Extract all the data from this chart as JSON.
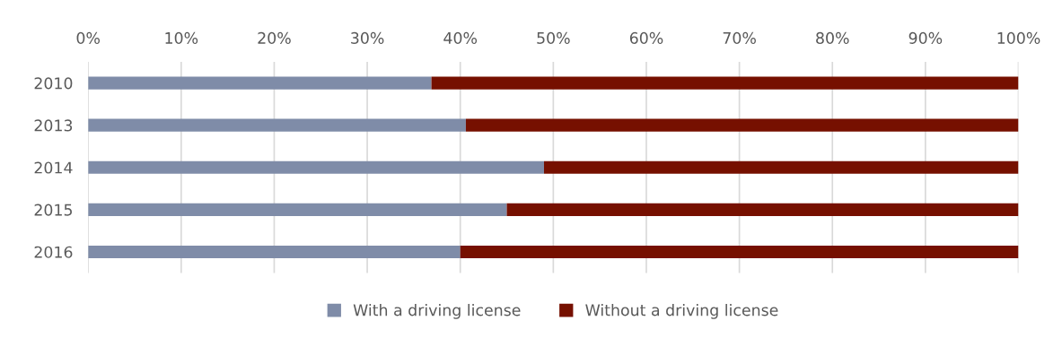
{
  "chart_data": {
    "type": "bar",
    "orientation": "horizontal",
    "stacked": true,
    "categories": [
      "2010",
      "2013",
      "2014",
      "2015",
      "2016"
    ],
    "series": [
      {
        "name": "With a driving license",
        "color": "#7f8ca8",
        "values": [
          36.9,
          40.6,
          49.0,
          45.0,
          40.0
        ]
      },
      {
        "name": "Without a driving license",
        "color": "#761000",
        "values": [
          63.1,
          59.4,
          51.0,
          55.0,
          60.0
        ]
      }
    ],
    "xlim": [
      0,
      100
    ],
    "xticks": [
      {
        "value": 0,
        "label": "0%"
      },
      {
        "value": 10,
        "label": "10%"
      },
      {
        "value": 20,
        "label": "20%"
      },
      {
        "value": 30,
        "label": "30%"
      },
      {
        "value": 40,
        "label": "40%"
      },
      {
        "value": 50,
        "label": "50%"
      },
      {
        "value": 60,
        "label": "60%"
      },
      {
        "value": 70,
        "label": "70%"
      },
      {
        "value": 80,
        "label": "80%"
      },
      {
        "value": 90,
        "label": "90%"
      },
      {
        "value": 100,
        "label": "100%"
      }
    ],
    "grid": "x",
    "legend": "bottom"
  }
}
